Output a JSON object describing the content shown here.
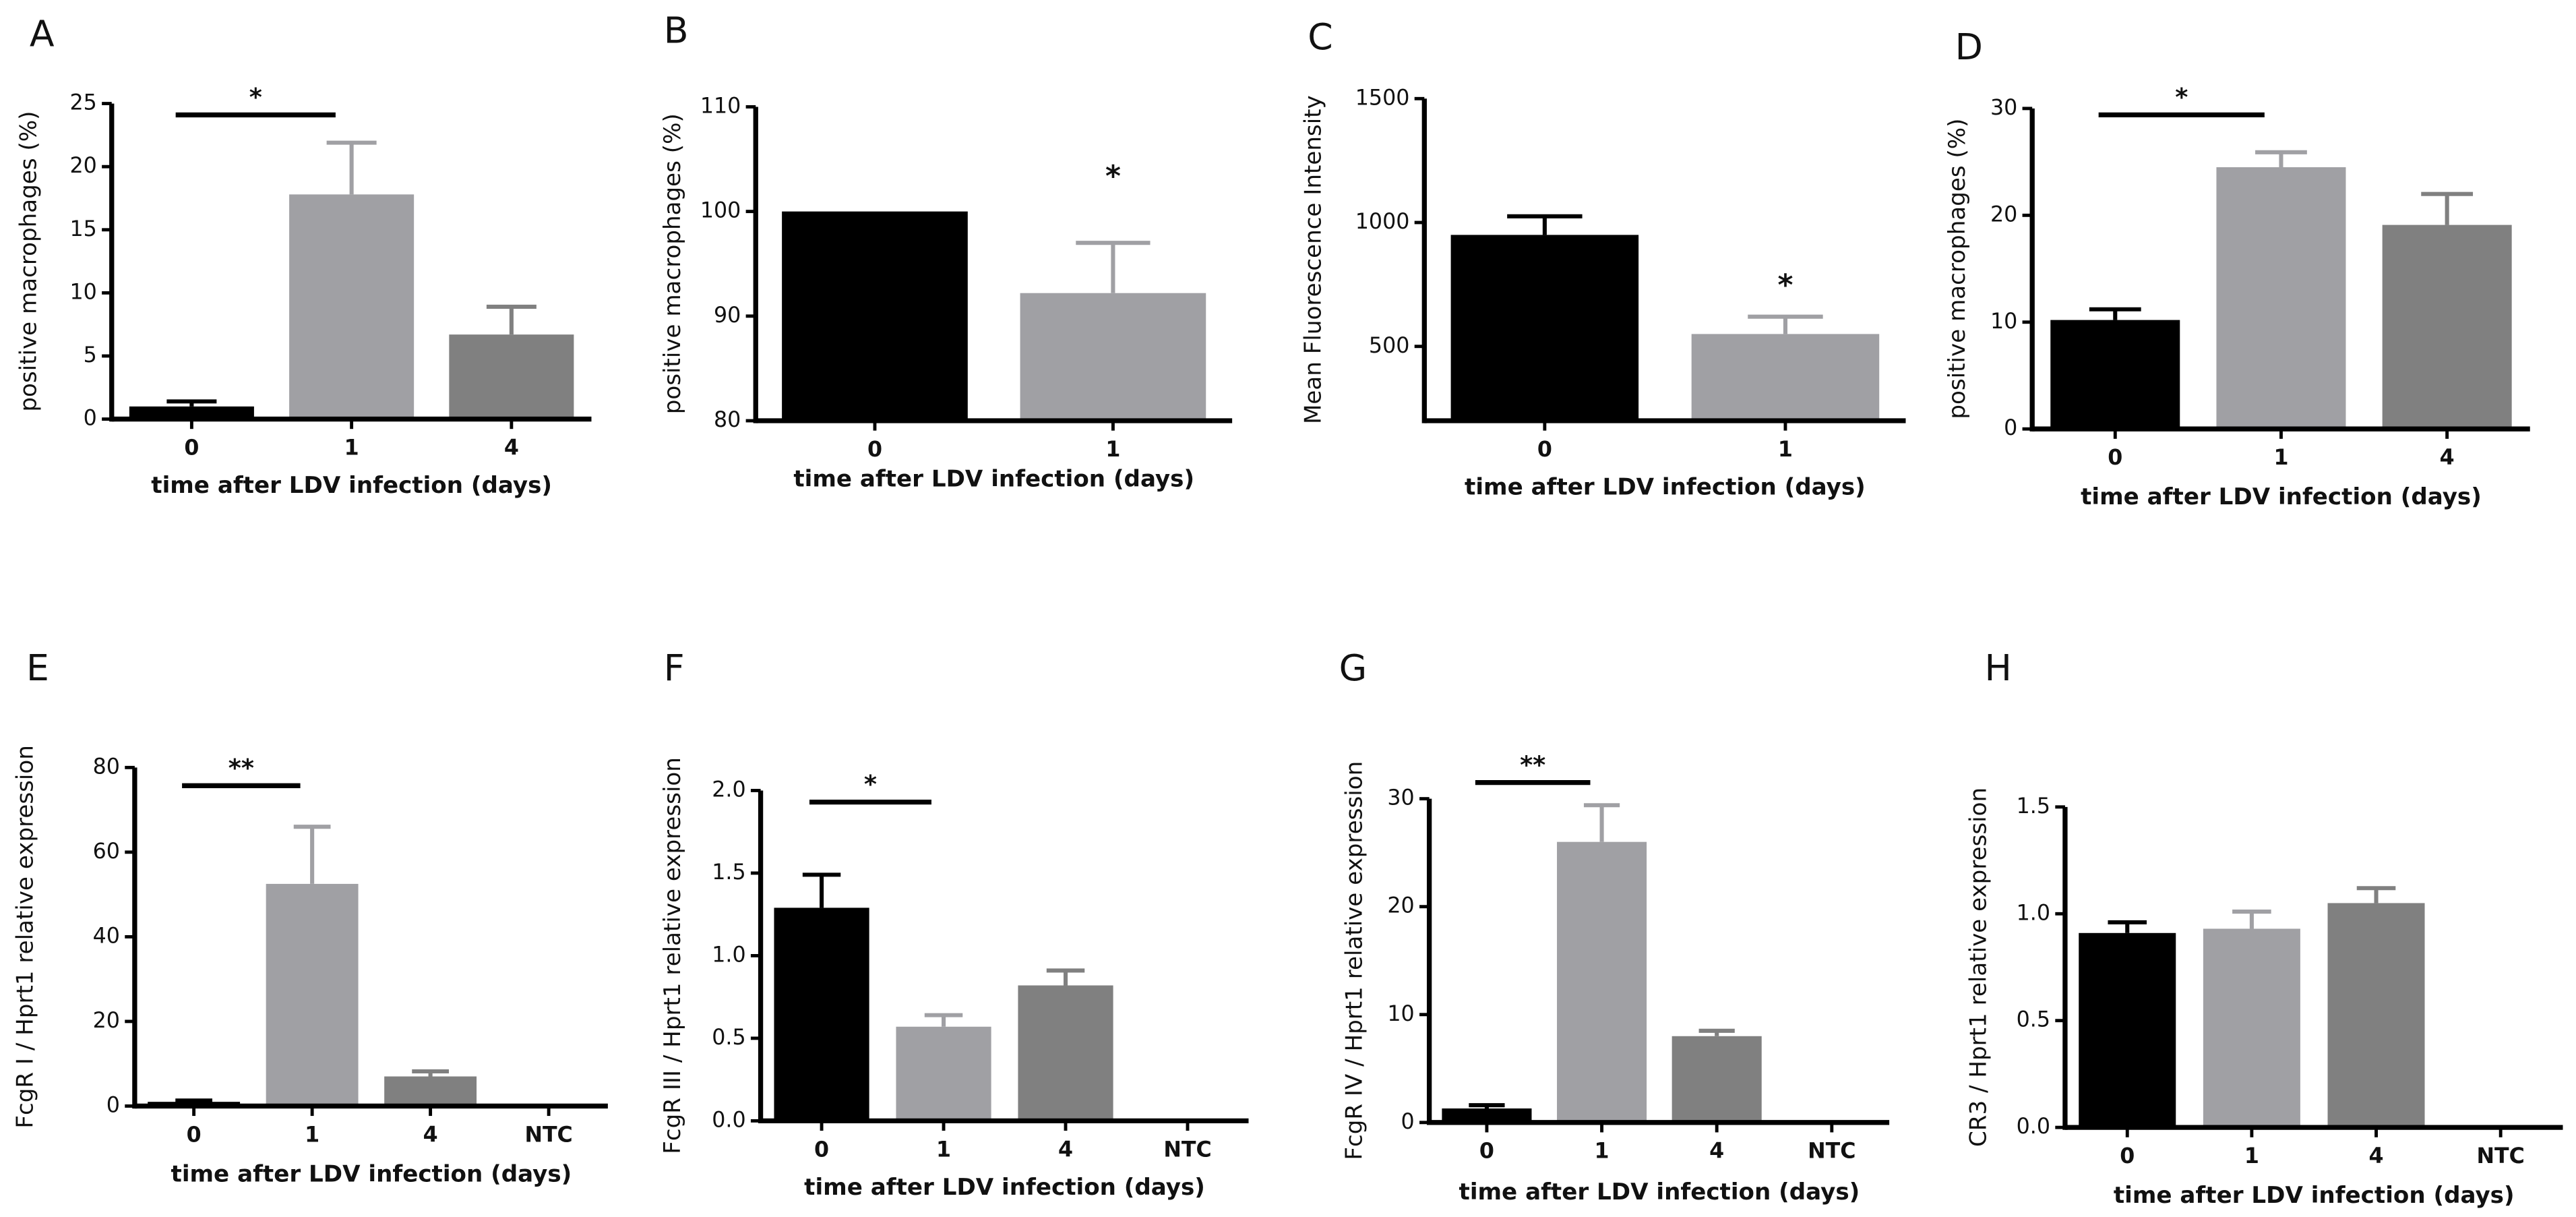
{
  "chart_data": [
    {
      "type": "bar",
      "panel": "A",
      "ylabel": "positive macrophages (%)",
      "xlabel": "time after LDV infection (days)",
      "categories": [
        "0",
        "1",
        "4"
      ],
      "values": [
        1,
        17.8,
        6.7
      ],
      "errors": [
        0.4,
        4.1,
        2.2
      ],
      "colors": [
        "#000000",
        "#a0a0a4",
        "#808080"
      ],
      "ylim": [
        0,
        25
      ],
      "yticks": [
        0,
        5,
        10,
        15,
        20,
        25
      ],
      "annotations": [
        {
          "text": "*",
          "between": [
            "0",
            "1"
          ],
          "y": 24.1
        }
      ]
    },
    {
      "type": "bar",
      "panel": "B",
      "ylabel": "positive macrophages (%)",
      "xlabel": "time after LDV infection (days)",
      "categories": [
        "0",
        "1"
      ],
      "values": [
        100,
        92.2
      ],
      "errors": [
        null,
        4.8
      ],
      "colors": [
        "#000000",
        "#a0a0a4"
      ],
      "ylim": [
        80,
        110
      ],
      "yticks": [
        80,
        90,
        100,
        110
      ],
      "annotations": [
        {
          "text": "*",
          "over": "1",
          "y": 103.2
        }
      ]
    },
    {
      "type": "bar",
      "panel": "C",
      "ylabel": "Mean Fluorescence Intensity",
      "xlabel": "time after LDV infection (days)",
      "categories": [
        "0",
        "1"
      ],
      "values": [
        950,
        550
      ],
      "errors": [
        75,
        70
      ],
      "colors": [
        "#000000",
        "#a0a0a4"
      ],
      "ylim": [
        200,
        1500
      ],
      "yticks": [
        500,
        1000,
        1500
      ],
      "annotations": [
        {
          "text": "*",
          "over": "1",
          "y": 740
        }
      ]
    },
    {
      "type": "bar",
      "panel": "D",
      "ylabel": "positive macrophages (%)",
      "xlabel": "time after LDV infection (days)",
      "categories": [
        "0",
        "1",
        "4"
      ],
      "values": [
        10.2,
        24.5,
        19.1
      ],
      "errors": [
        1,
        1.4,
        2.9
      ],
      "colors": [
        "#000000",
        "#a0a0a4",
        "#808080"
      ],
      "ylim": [
        0,
        30
      ],
      "yticks": [
        0,
        10,
        20,
        30
      ],
      "annotations": [
        {
          "text": "*",
          "between": [
            "0",
            "1"
          ],
          "y": 29.4
        }
      ]
    },
    {
      "type": "bar",
      "panel": "E",
      "ylabel": "FcgR I / Hprt1 relative expression",
      "xlabel": "time after LDV infection (days)",
      "categories": [
        "0",
        "1",
        "4",
        "NTC"
      ],
      "values": [
        1,
        52.5,
        7,
        null
      ],
      "errors": [
        0.3,
        13.5,
        1.2,
        null
      ],
      "colors": [
        "#000000",
        "#a0a0a4",
        "#808080",
        "#808080"
      ],
      "ylim": [
        0,
        80
      ],
      "yticks": [
        0,
        20,
        40,
        60,
        80
      ],
      "annotations": [
        {
          "text": "**",
          "between": [
            "0",
            "1"
          ],
          "y": 75.7
        }
      ]
    },
    {
      "type": "bar",
      "panel": "F",
      "ylabel": "FcgR III / Hprt1 relative expression",
      "xlabel": "time after LDV infection (days)",
      "categories": [
        "0",
        "1",
        "4",
        "NTC"
      ],
      "values": [
        1.29,
        0.57,
        0.82,
        null
      ],
      "errors": [
        0.2,
        0.07,
        0.09,
        null
      ],
      "colors": [
        "#000000",
        "#a0a0a4",
        "#808080",
        "#808080"
      ],
      "ylim": [
        0,
        2
      ],
      "yticks": [
        {
          "value": 0,
          "label": "0.0"
        },
        0.5,
        {
          "value": 1,
          "label": "1.0"
        },
        1.5,
        {
          "value": 2,
          "label": "2.0"
        }
      ],
      "annotations": [
        {
          "text": "*",
          "between": [
            "0",
            "1"
          ],
          "y": 1.93
        }
      ]
    },
    {
      "type": "bar",
      "panel": "G",
      "ylabel": "FcgR IV / Hprt1 relative expression",
      "xlabel": "time after LDV infection (days)",
      "categories": [
        "0",
        "1",
        "4",
        "NTC"
      ],
      "values": [
        1.3,
        26,
        8,
        null
      ],
      "errors": [
        0.3,
        3.4,
        0.5,
        null
      ],
      "colors": [
        "#000000",
        "#a0a0a4",
        "#808080",
        "#808080"
      ],
      "ylim": [
        0,
        30
      ],
      "yticks": [
        0,
        10,
        20,
        30
      ],
      "annotations": [
        {
          "text": "**",
          "between": [
            "0",
            "1"
          ],
          "y": 31.5
        }
      ]
    },
    {
      "type": "bar",
      "panel": "H",
      "ylabel": "CR3 / Hprt1 relative expression",
      "xlabel": "time after LDV infection (days)",
      "categories": [
        "0",
        "1",
        "4",
        "NTC"
      ],
      "values": [
        0.91,
        0.93,
        1.05,
        null
      ],
      "errors": [
        0.05,
        0.08,
        0.07,
        null
      ],
      "colors": [
        "#000000",
        "#a0a0a4",
        "#808080",
        "#808080"
      ],
      "ylim": [
        0,
        1.5
      ],
      "yticks": [
        {
          "value": 0,
          "label": "0.0"
        },
        0.5,
        {
          "value": 1,
          "label": "1.0"
        },
        1.5
      ],
      "annotations": []
    }
  ]
}
